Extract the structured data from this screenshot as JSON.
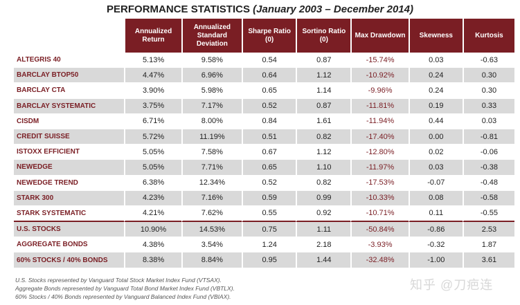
{
  "title": {
    "main": "PERFORMANCE STATISTICS",
    "subtitle": "(January 2003 – December 2014)"
  },
  "table": {
    "headers": [
      "Annualized Return",
      "Annualized Standard Deviation",
      "Sharpe Ratio (0)",
      "Sortino Ratio (0)",
      "Max Drawdown",
      "Skewness",
      "Kurtosis"
    ],
    "rows": [
      {
        "name": "ALTEGRIS 40",
        "values": [
          "5.13%",
          "9.58%",
          "0.54",
          "0.87",
          "-15.74%",
          "0.03",
          "-0.63"
        ]
      },
      {
        "name": "BARCLAY BTOP50",
        "values": [
          "4.47%",
          "6.96%",
          "0.64",
          "1.12",
          "-10.92%",
          "0.24",
          "0.30"
        ]
      },
      {
        "name": "BARCLAY CTA",
        "values": [
          "3.90%",
          "5.98%",
          "0.65",
          "1.14",
          "-9.96%",
          "0.24",
          "0.30"
        ]
      },
      {
        "name": "BARCLAY SYSTEMATIC",
        "values": [
          "3.75%",
          "7.17%",
          "0.52",
          "0.87",
          "-11.81%",
          "0.19",
          "0.33"
        ]
      },
      {
        "name": "CISDM",
        "values": [
          "6.71%",
          "8.00%",
          "0.84",
          "1.61",
          "-11.94%",
          "0.44",
          "0.03"
        ]
      },
      {
        "name": "CREDIT SUISSE",
        "values": [
          "5.72%",
          "11.19%",
          "0.51",
          "0.82",
          "-17.40%",
          "0.00",
          "-0.81"
        ]
      },
      {
        "name": "ISTOXX EFFICIENT",
        "values": [
          "5.05%",
          "7.58%",
          "0.67",
          "1.12",
          "-12.80%",
          "0.02",
          "-0.06"
        ]
      },
      {
        "name": "NEWEDGE",
        "values": [
          "5.05%",
          "7.71%",
          "0.65",
          "1.10",
          "-11.97%",
          "0.03",
          "-0.38"
        ]
      },
      {
        "name": "NEWEDGE TREND",
        "values": [
          "6.38%",
          "12.34%",
          "0.52",
          "0.82",
          "-17.53%",
          "-0.07",
          "-0.48"
        ]
      },
      {
        "name": "STARK 300",
        "values": [
          "4.23%",
          "7.16%",
          "0.59",
          "0.99",
          "-10.33%",
          "0.08",
          "-0.58"
        ]
      },
      {
        "name": "STARK SYSTEMATIC",
        "values": [
          "4.21%",
          "7.62%",
          "0.55",
          "0.92",
          "-10.71%",
          "0.11",
          "-0.55"
        ]
      },
      {
        "name": "U.S. STOCKS",
        "values": [
          "10.90%",
          "14.53%",
          "0.75",
          "1.11",
          "-50.84%",
          "-0.86",
          "2.53"
        ]
      },
      {
        "name": "AGGREGATE BONDS",
        "values": [
          "4.38%",
          "3.54%",
          "1.24",
          "2.18",
          "-3.93%",
          "-0.32",
          "1.87"
        ]
      },
      {
        "name": "60% STOCKS / 40% BONDS",
        "values": [
          "8.38%",
          "8.84%",
          "0.95",
          "1.44",
          "-32.48%",
          "-1.00",
          "3.61"
        ]
      }
    ]
  },
  "notes": [
    "U.S. Stocks represented by Vanguard Total Stock Market Index Fund (VTSAX).",
    "Aggregate Bonds represented by Vanguard Total Bond Market Index Fund (VBTLX).",
    "60% Stocks / 40% Bonds represented by Vanguard Balanced Index Fund (VBIAX)."
  ],
  "watermark": {
    "icon": "zhihu-logo-icon",
    "text": "知乎 @刀疤连"
  },
  "colors": {
    "accent": "#7a1e24",
    "shade": "#d9d9d9"
  }
}
